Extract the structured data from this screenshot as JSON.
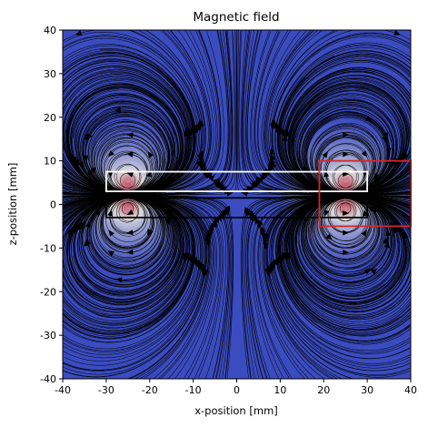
{
  "chart_data": {
    "type": "heatmap",
    "title": "Magnetic field",
    "xlabel": "x-position [mm]",
    "ylabel": "z-position [mm]",
    "xlim": [
      -40,
      40
    ],
    "ylim": [
      -40,
      40
    ],
    "xticks": [
      -40,
      -30,
      -20,
      -10,
      0,
      10,
      20,
      30,
      40
    ],
    "yticks": [
      -40,
      -30,
      -20,
      -10,
      0,
      10,
      20,
      30,
      40
    ],
    "colormap": "coolwarm",
    "overlay": "streamlines",
    "grid": false,
    "colors": {
      "low": "#3b4cc0",
      "mid": "#dddddd",
      "high": "#b40426",
      "magnet_outline": "#ffffff",
      "coil_outline": "#000000",
      "region_outline": "#d62728"
    },
    "rectangles": [
      {
        "name": "magnet",
        "x0": -30,
        "x1": 30,
        "z0": 3,
        "z1": 7.5,
        "color": "white"
      },
      {
        "name": "coil",
        "x0": -30,
        "x1": 30,
        "z0": -3,
        "z1": 1.5,
        "color": "black"
      },
      {
        "name": "region",
        "x0": 19,
        "x1": 40,
        "z0": -5,
        "z1": 10,
        "color": "red"
      }
    ],
    "field_sources": [
      {
        "x": -25,
        "z": 5.2,
        "sign": 1
      },
      {
        "x": -25,
        "z": -0.8,
        "sign": -1
      },
      {
        "x": 25,
        "z": 5.2,
        "sign": -1
      },
      {
        "x": 25,
        "z": -0.8,
        "sign": 1
      }
    ]
  }
}
